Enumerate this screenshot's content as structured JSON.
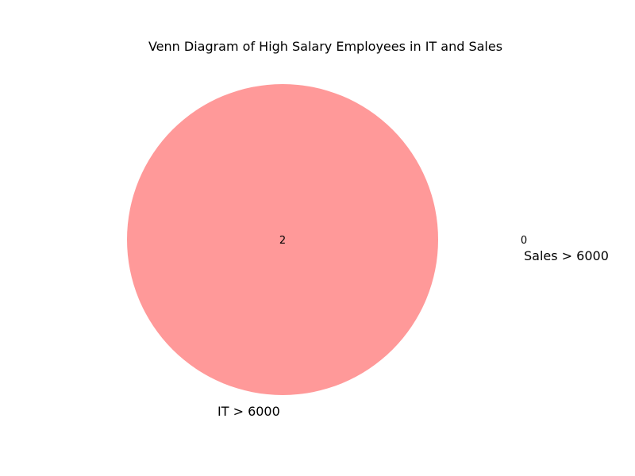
{
  "chart_data": {
    "type": "venn",
    "title": "Venn Diagram of High Salary Employees in IT and Sales",
    "sets": [
      {
        "name": "IT > 6000",
        "only_count": "2",
        "color": "#ff9999"
      },
      {
        "name": "Sales > 6000",
        "only_count": "0",
        "color": "#99ccff"
      }
    ],
    "intersection_count": "0"
  }
}
